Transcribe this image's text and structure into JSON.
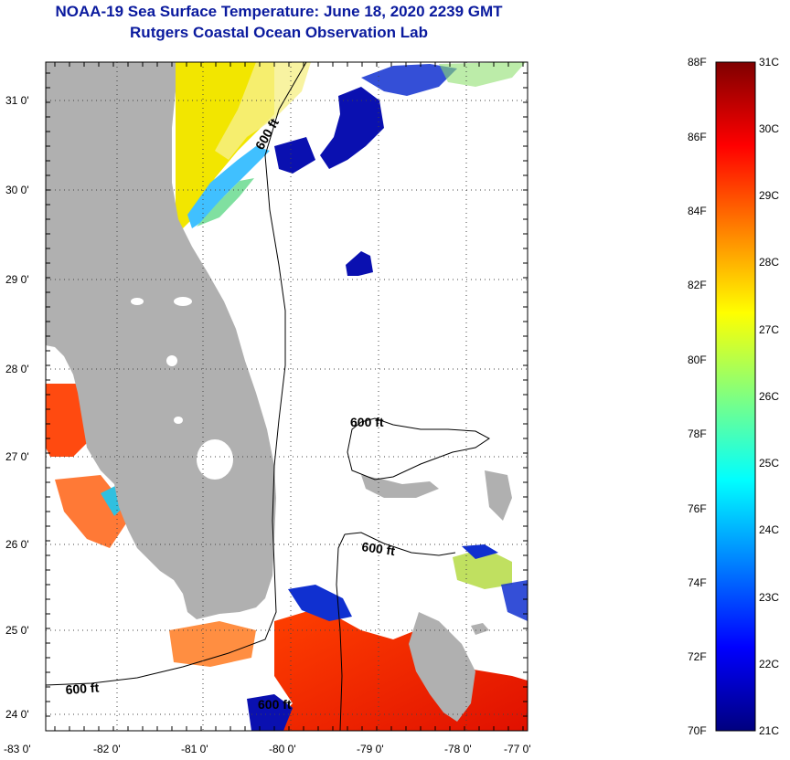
{
  "title": "NOAA-19 Sea Surface Temperature:  June 18, 2020 2239 GMT",
  "subtitle": "Rutgers Coastal Ocean Observation Lab",
  "map": {
    "lon_ticks": [
      "-83 0'",
      "-82 0'",
      "-81 0'",
      "-80 0'",
      "-79 0'",
      "-78 0'",
      "-77 0'"
    ],
    "lat_ticks": [
      "31 0'",
      "30 0'",
      "29 0'",
      "28 0'",
      "27 0'",
      "26 0'",
      "25 0'",
      "24 0'"
    ],
    "isobath_labels": [
      "600 ft",
      "600 ft",
      "600 ft",
      "600 ft",
      "600 ft"
    ],
    "colors": {
      "land": "#b0b0b0",
      "water_no_data": "#ffffff",
      "isobath": "#000000"
    }
  },
  "colorbar": {
    "fahrenheit_labels": [
      "88F",
      "86F",
      "84F",
      "82F",
      "80F",
      "78F",
      "76F",
      "74F",
      "72F",
      "70F"
    ],
    "celsius_labels": [
      "31C",
      "30C",
      "29C",
      "28C",
      "27C",
      "26C",
      "25C",
      "24C",
      "23C",
      "22C",
      "21C"
    ],
    "colormap": [
      "#00007f",
      "#0000ff",
      "#0080ff",
      "#00ffff",
      "#80ff80",
      "#ffff00",
      "#ff8000",
      "#ff0000",
      "#7f0000"
    ]
  }
}
